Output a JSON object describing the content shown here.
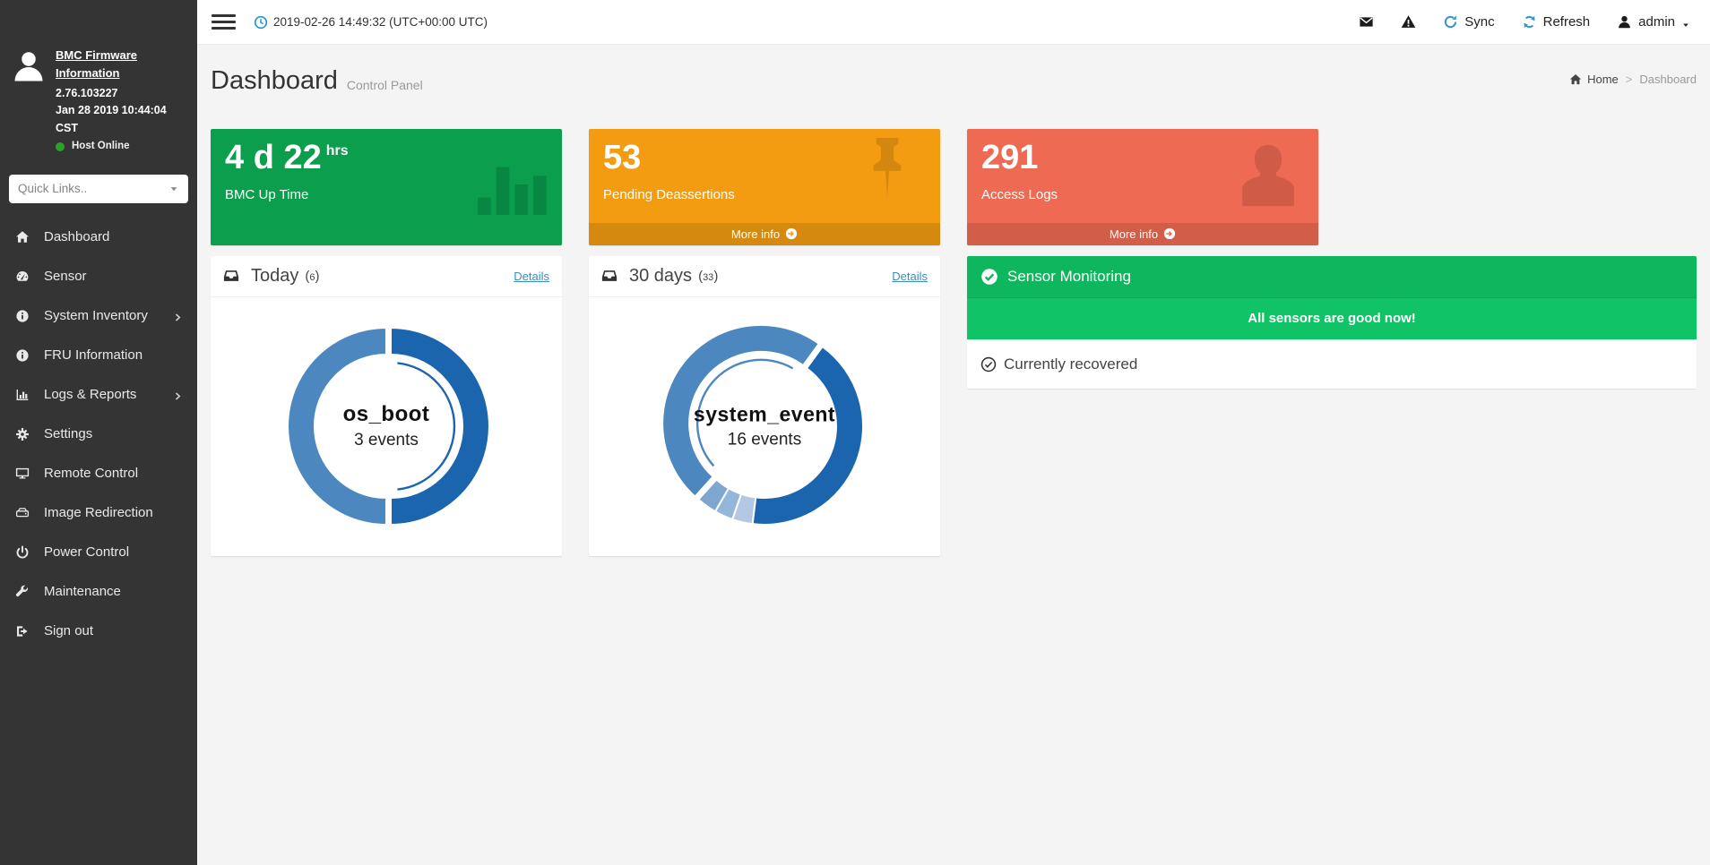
{
  "topbar": {
    "datetime": "2019-02-26 14:49:32 (UTC+00:00 UTC)",
    "sync_label": "Sync",
    "refresh_label": "Refresh",
    "username": "admin"
  },
  "sidebar": {
    "firmware_info_link": "BMC Firmware Information",
    "firmware_version": "2.76.103227",
    "firmware_date": "Jan 28 2019 10:44:04 CST",
    "host_status": "Host Online",
    "host_status_color": "#2aa22a",
    "quick_links_label": "Quick Links..",
    "items": [
      {
        "label": "Dashboard",
        "icon": "home-icon",
        "expandable": false
      },
      {
        "label": "Sensor",
        "icon": "gauge-icon",
        "expandable": false
      },
      {
        "label": "System Inventory",
        "icon": "info-circle-icon",
        "expandable": true
      },
      {
        "label": "FRU Information",
        "icon": "info-circle-icon",
        "expandable": false
      },
      {
        "label": "Logs & Reports",
        "icon": "bar-chart-icon",
        "expandable": true
      },
      {
        "label": "Settings",
        "icon": "gear-icon",
        "expandable": false
      },
      {
        "label": "Remote Control",
        "icon": "monitor-icon",
        "expandable": false
      },
      {
        "label": "Image Redirection",
        "icon": "drive-icon",
        "expandable": false
      },
      {
        "label": "Power Control",
        "icon": "power-icon",
        "expandable": false
      },
      {
        "label": "Maintenance",
        "icon": "wrench-icon",
        "expandable": false
      },
      {
        "label": "Sign out",
        "icon": "sign-out-icon",
        "expandable": false
      }
    ]
  },
  "page": {
    "title": "Dashboard",
    "subtitle": "Control Panel",
    "breadcrumb": {
      "home": "Home",
      "separator": ">",
      "current": "Dashboard"
    }
  },
  "cards": [
    {
      "value": "4 d 22",
      "unit": "hrs",
      "label": "BMC Up Time",
      "color": "#0a9e4d",
      "watermark": "bars-watermark",
      "more_info": null
    },
    {
      "value": "53",
      "unit": "",
      "label": "Pending Deassertions",
      "color": "#f39c12",
      "watermark": "pin-watermark",
      "more_info": "More info"
    },
    {
      "value": "291",
      "unit": "",
      "label": "Access Logs",
      "color": "#ef6a52",
      "watermark": "person-watermark",
      "more_info": "More info"
    }
  ],
  "event_panels": [
    {
      "title": "Today",
      "count": "6",
      "details_label": "Details",
      "center_label": "os_boot",
      "center_sublabel": "3 events"
    },
    {
      "title": "30 days",
      "count": "33",
      "details_label": "Details",
      "center_label": "system_event",
      "center_sublabel": "16 events"
    }
  ],
  "sensor_panel": {
    "title": "Sensor Monitoring",
    "message": "All sensors are good now!",
    "status": "Currently recovered",
    "header_color": "#0eb75d",
    "body_color": "#10c366"
  },
  "chart_data": [
    {
      "type": "donut",
      "title": "Today",
      "total_events": 6,
      "center_label": "os_boot",
      "center_sublabel": "3 events",
      "segments": [
        {
          "name": "os_boot",
          "events": 3,
          "start": 0,
          "end": 180,
          "color": "#1b64ae",
          "highlighted": true
        },
        {
          "name": "segment-2",
          "events": 3,
          "start": 180,
          "end": 360,
          "color": "#4d87c0",
          "highlighted": false
        }
      ]
    },
    {
      "type": "donut",
      "title": "30 days",
      "total_events": 33,
      "center_label": "system_event",
      "center_sublabel": "16 events",
      "segments": [
        {
          "name": "segment-2",
          "events": 14,
          "start": 36,
          "end": 187,
          "color": "#1b64ae",
          "highlighted": false
        },
        {
          "name": "segment-3",
          "events": 1,
          "start": 187,
          "end": 199,
          "color": "#b3c9e3",
          "highlighted": false
        },
        {
          "name": "segment-4",
          "events": 1,
          "start": 199,
          "end": 210,
          "color": "#94b6da",
          "highlighted": false
        },
        {
          "name": "segment-5",
          "events": 1,
          "start": 210,
          "end": 222,
          "color": "#7fa6cf",
          "highlighted": false
        },
        {
          "name": "system_event",
          "events": 16,
          "start": 222,
          "end": 396,
          "color": "#4d87c0",
          "highlighted": true
        }
      ]
    }
  ]
}
